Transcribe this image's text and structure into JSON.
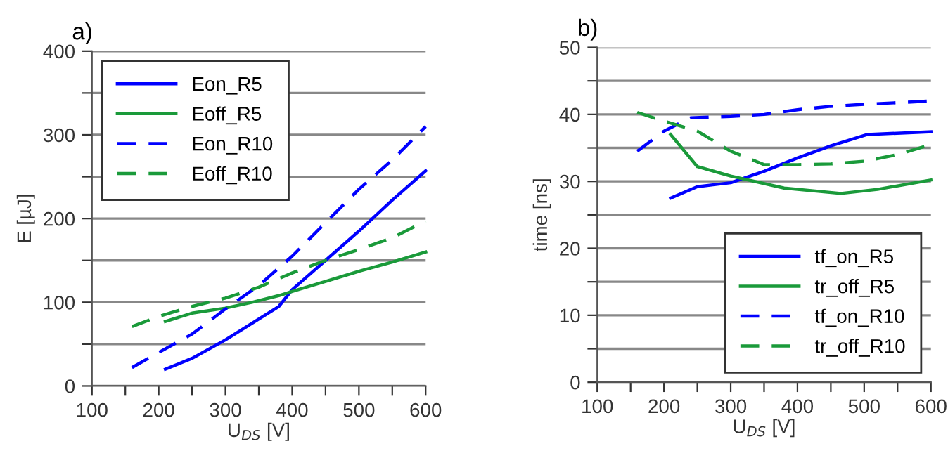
{
  "chart_data": [
    {
      "type": "line",
      "title": "a)",
      "xlabel": "U$_{DS}$ [V]",
      "ylabel": "E [µJ]",
      "xlim": [
        100,
        600
      ],
      "ylim": [
        0,
        400
      ],
      "xticks": [
        100,
        {
          "value": 150,
          "label": null
        },
        200,
        {
          "value": 250,
          "label": null
        },
        300,
        {
          "value": 350,
          "label": null
        },
        400,
        {
          "value": 450,
          "label": null
        },
        500,
        {
          "value": 550,
          "label": null
        },
        600
      ],
      "yticks": [
        0,
        {
          "value": 50,
          "label": null
        },
        100,
        {
          "value": 150,
          "label": null
        },
        200,
        {
          "value": 250,
          "label": null
        },
        300,
        {
          "value": 350,
          "label": null
        },
        400
      ],
      "grid": "y",
      "legend": "top left",
      "marker": "none",
      "series": [
        {
          "name": "Eon_R5",
          "color": "#0000ff",
          "line_style": "solid",
          "x": [
            210,
            250,
            300,
            340,
            380,
            400,
            450,
            500,
            550,
            600
          ],
          "values": [
            20,
            33,
            55,
            75,
            95,
            115,
            150,
            185,
            222,
            257
          ]
        },
        {
          "name": "Eoff_R5",
          "color": "#1a9a3a",
          "line_style": "solid",
          "x": [
            210,
            250,
            300,
            340,
            380,
            400,
            450,
            500,
            550,
            600
          ],
          "values": [
            77,
            87,
            93,
            100,
            108,
            113,
            125,
            137,
            148,
            160
          ]
        },
        {
          "name": "Eon_R10",
          "color": "#0000ff",
          "line_style": "dashed",
          "x": [
            160,
            200,
            250,
            300,
            350,
            400,
            450,
            500,
            550,
            600
          ],
          "values": [
            22,
            40,
            62,
            92,
            120,
            155,
            195,
            235,
            270,
            310
          ]
        },
        {
          "name": "Eoff_R10",
          "color": "#1a9a3a",
          "line_style": "dashed",
          "x": [
            160,
            200,
            250,
            300,
            350,
            400,
            450,
            500,
            550,
            600
          ],
          "values": [
            71,
            83,
            95,
            105,
            118,
            135,
            150,
            163,
            177,
            197
          ]
        }
      ]
    },
    {
      "type": "line",
      "title": "b)",
      "xlabel": "U$_{DS}$ [V]",
      "ylabel": "time [ns]",
      "xlim": [
        100,
        600
      ],
      "ylim": [
        0,
        50
      ],
      "xticks": [
        100,
        {
          "value": 150,
          "label": null
        },
        200,
        {
          "value": 250,
          "label": null
        },
        300,
        {
          "value": 350,
          "label": null
        },
        400,
        {
          "value": 450,
          "label": null
        },
        500,
        {
          "value": 550,
          "label": null
        },
        600
      ],
      "yticks": [
        0,
        {
          "value": 5,
          "label": null
        },
        10,
        {
          "value": 15,
          "label": null
        },
        20,
        {
          "value": 25,
          "label": null
        },
        30,
        {
          "value": 35,
          "label": null
        },
        40,
        {
          "value": 45,
          "label": null
        },
        50
      ],
      "grid": "y",
      "legend": "bottom right",
      "marker": "none",
      "series": [
        {
          "name": "tf_on_R5",
          "color": "#0000ff",
          "line_style": "solid",
          "x": [
            210,
            250,
            300,
            350,
            400,
            450,
            505,
            600
          ],
          "values": [
            27.5,
            29.2,
            29.8,
            31.5,
            33.5,
            35.3,
            37,
            37.4
          ]
        },
        {
          "name": "tr_off_R5",
          "color": "#1a9a3a",
          "line_style": "solid",
          "x": [
            210,
            250,
            300,
            380,
            465,
            520,
            600
          ],
          "values": [
            37,
            32.2,
            30.8,
            29,
            28.2,
            28.8,
            30.2
          ]
        },
        {
          "name": "tf_on_R10",
          "color": "#0000ff",
          "line_style": "dashed",
          "x": [
            160,
            200,
            240,
            300,
            350,
            400,
            450,
            500,
            600
          ],
          "values": [
            34.5,
            37.5,
            39.5,
            39.7,
            40,
            40.7,
            41.2,
            41.5,
            42
          ]
        },
        {
          "name": "tr_off_R10",
          "color": "#1a9a3a",
          "line_style": "dashed",
          "x": [
            160,
            200,
            250,
            300,
            350,
            400,
            450,
            500,
            550,
            600
          ],
          "values": [
            40.3,
            39,
            37.5,
            34.5,
            32.5,
            32.5,
            32.6,
            33,
            34,
            35.5
          ]
        }
      ]
    }
  ]
}
